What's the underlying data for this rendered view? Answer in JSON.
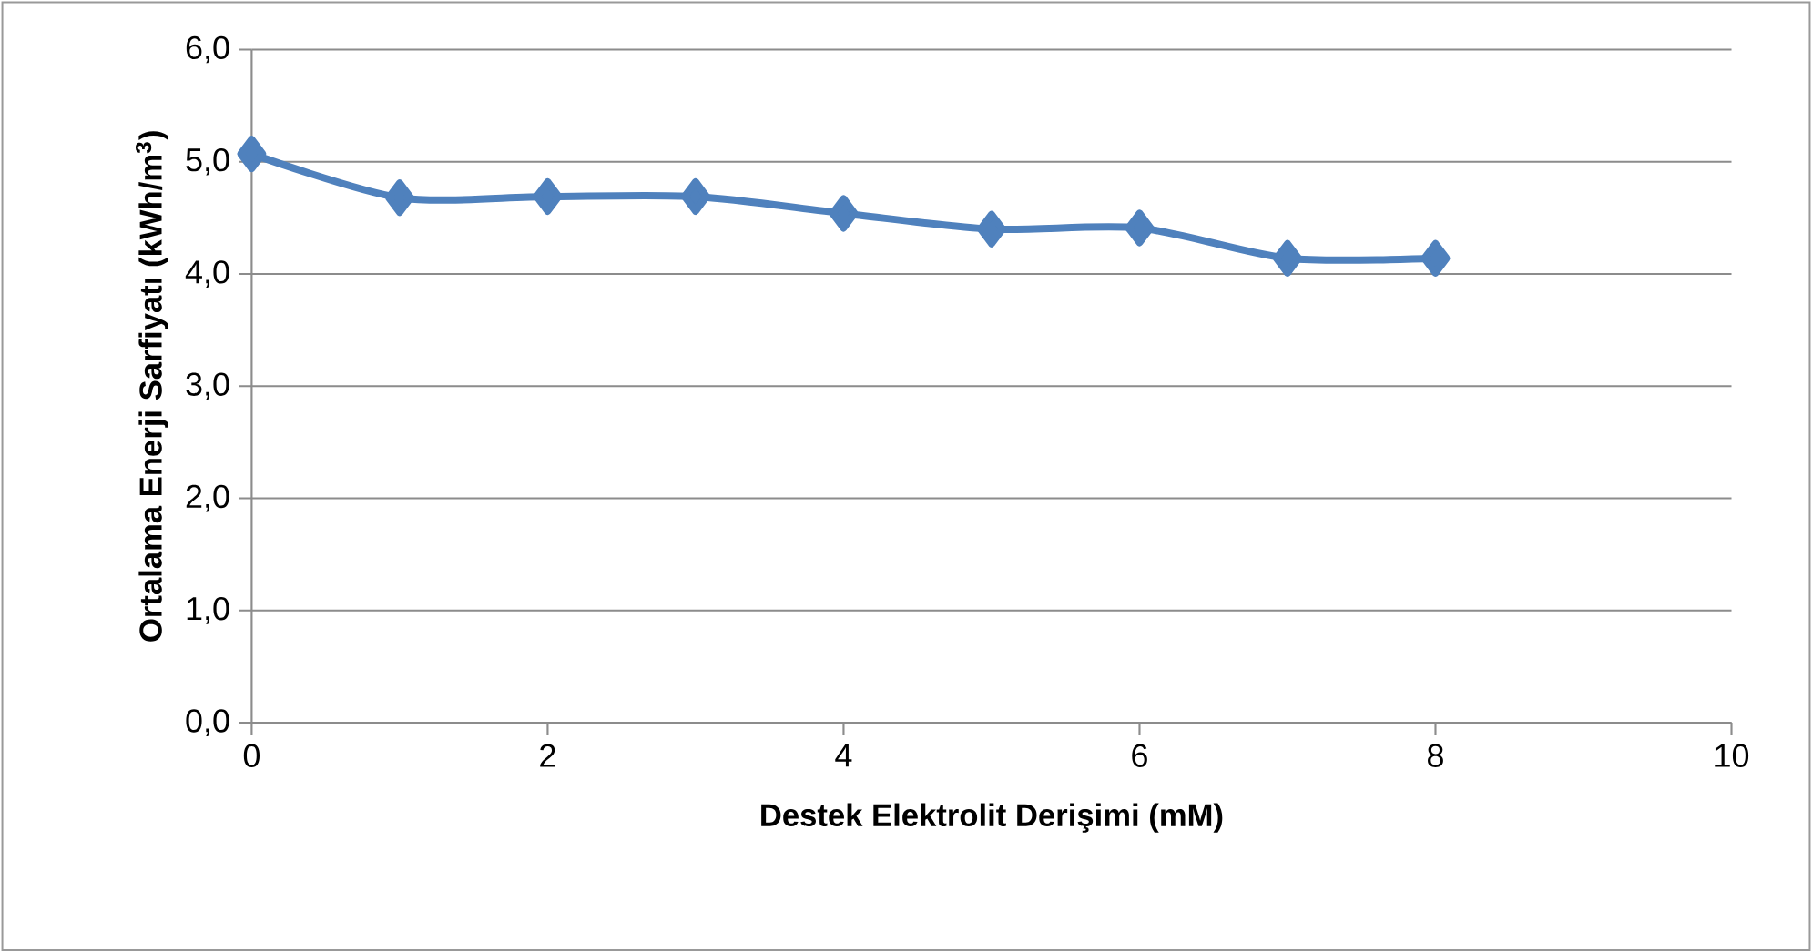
{
  "chart_data": {
    "type": "line",
    "xlabel": "Destek Elektrolit Derişimi (mM)",
    "ylabel": "Ortalama Enerji Sarfiyatı (kWh/m$^{3}$)",
    "x": [
      0,
      1,
      2,
      3,
      4,
      5,
      6,
      7,
      8
    ],
    "series": [
      {
        "color": "#4f81bd",
        "values": [
          5.07,
          4.68,
          4.69,
          4.69,
          4.54,
          4.4,
          4.41,
          4.14,
          4.14
        ]
      }
    ],
    "xlim": [
      0,
      10
    ],
    "xticks": [
      0,
      2,
      4,
      6,
      8,
      10
    ],
    "ylim": [
      0,
      6
    ],
    "yticks": [
      {
        "value": 0,
        "label": "0,0"
      },
      {
        "value": 1,
        "label": "1,0"
      },
      {
        "value": 2,
        "label": "2,0"
      },
      {
        "value": 3,
        "label": "3,0"
      },
      {
        "value": 4,
        "label": "4,0"
      },
      {
        "value": 5,
        "label": "5,0"
      },
      {
        "value": 6,
        "label": "6,0"
      }
    ],
    "grid": "y",
    "marker": "diamond",
    "line_style": "solid"
  }
}
